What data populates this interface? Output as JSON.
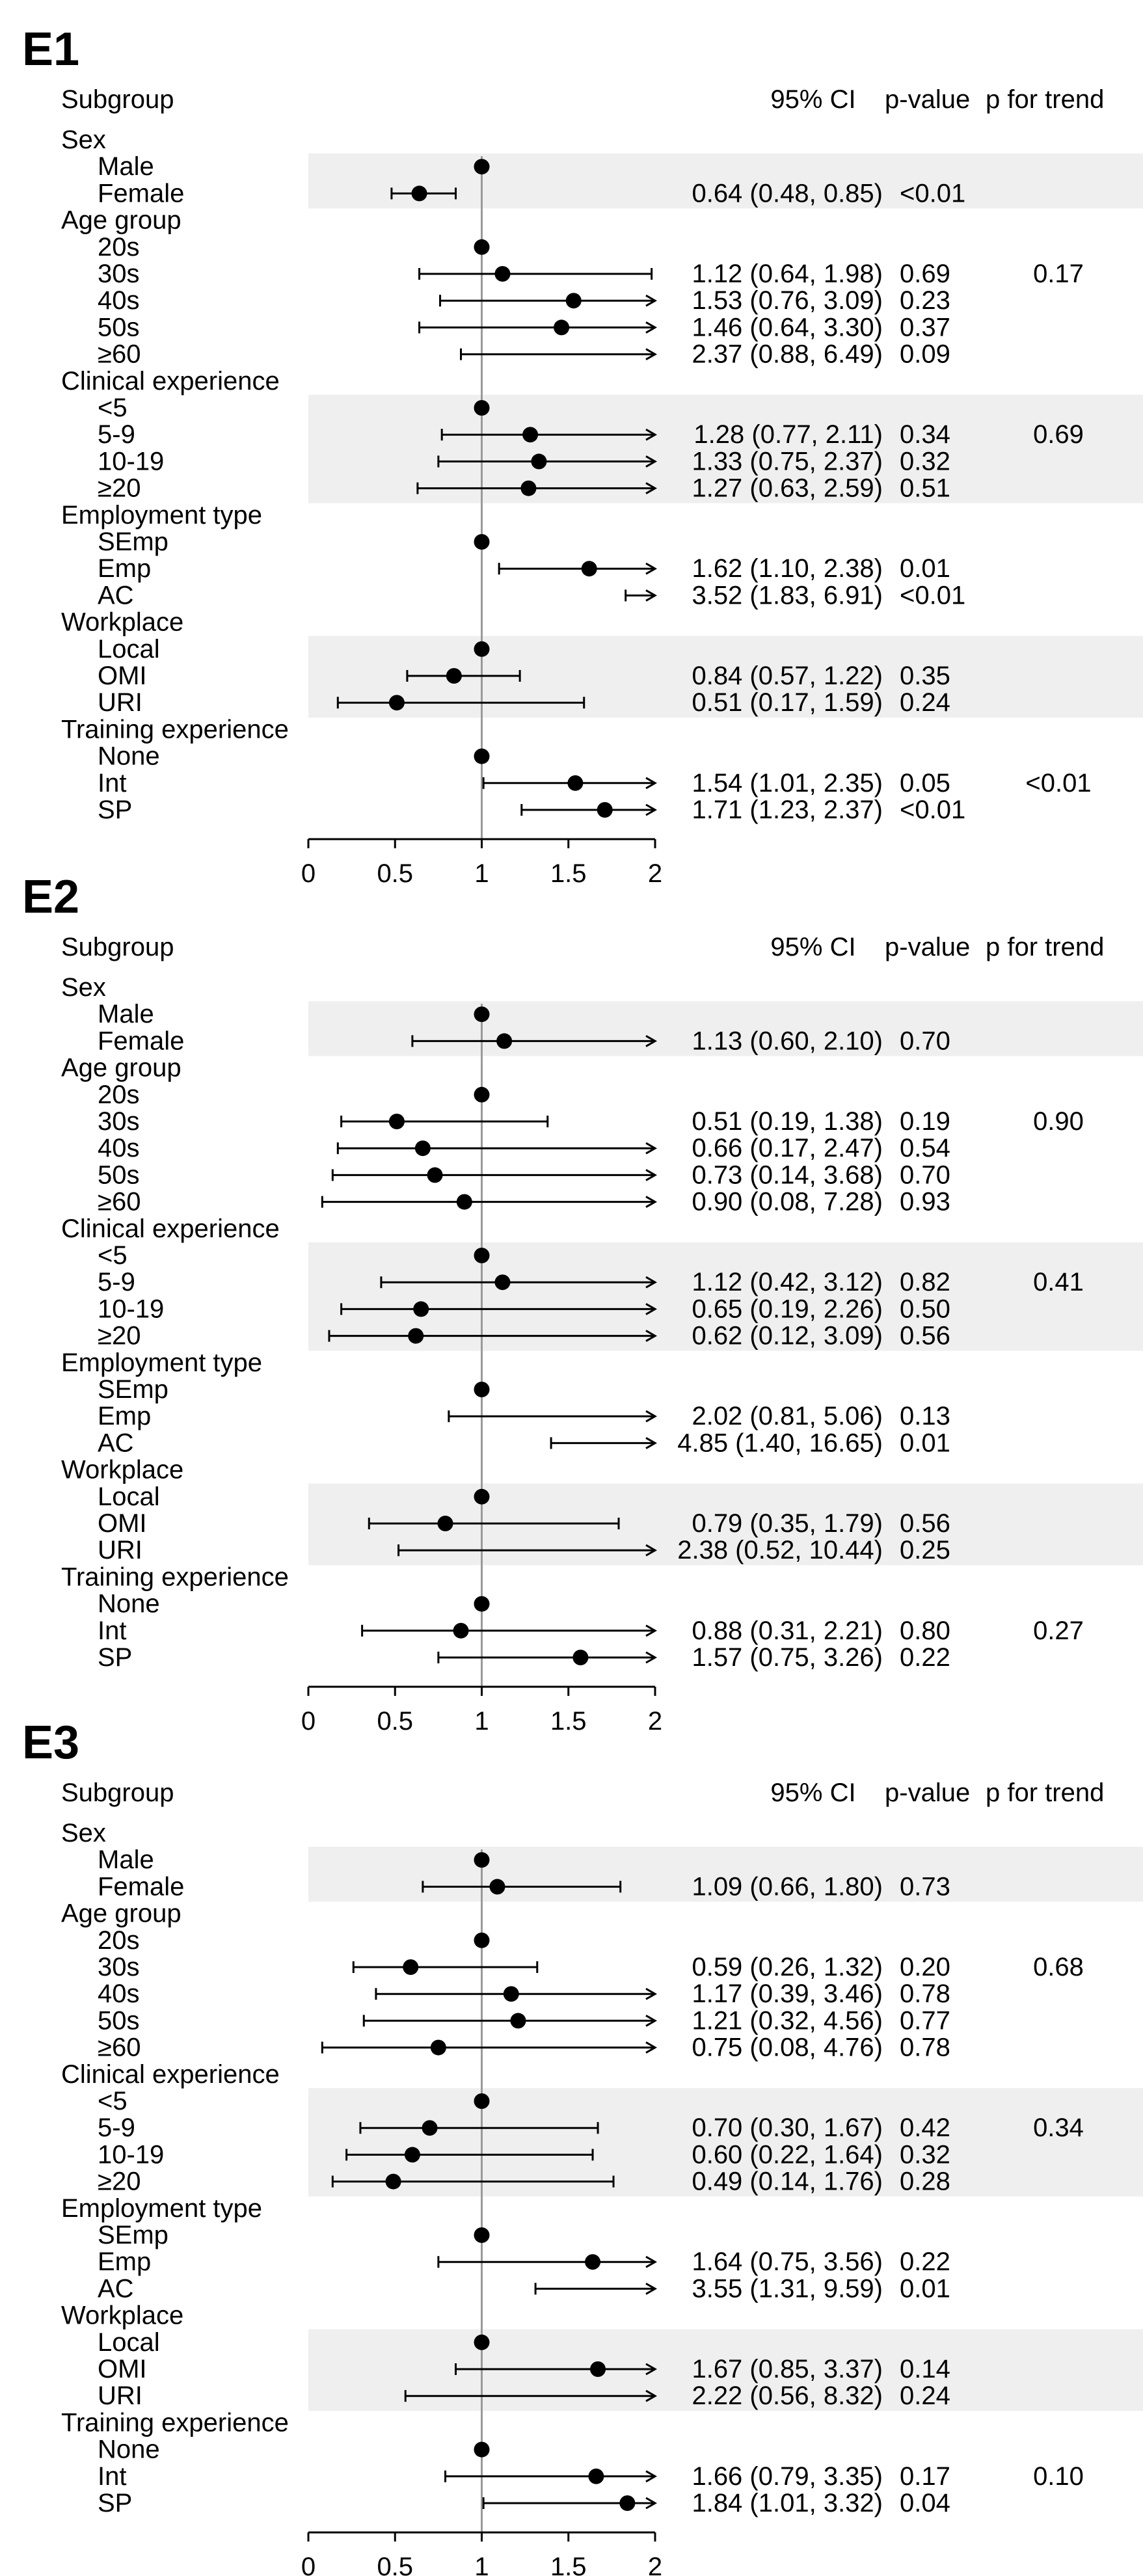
{
  "chart_data": [
    {
      "type": "forest",
      "panel": "E1",
      "headers": {
        "subgroup": "Subgroup",
        "ci": "95% CI",
        "p": "p-value",
        "trend": "p for trend"
      },
      "x_ticks": [
        "0",
        "0.5",
        "1",
        "1.5",
        "2"
      ],
      "xlim": [
        0,
        2
      ],
      "reference": 1,
      "rows": [
        {
          "label": "Sex",
          "type": "group"
        },
        {
          "label": "Male",
          "type": "ref"
        },
        {
          "label": "Female",
          "est": 0.64,
          "lo": 0.48,
          "hi": 0.85,
          "ci": "0.64 (0.48, 0.85)",
          "p": "<0.01"
        },
        {
          "label": "Age group",
          "type": "group"
        },
        {
          "label": "20s",
          "type": "ref"
        },
        {
          "label": "30s",
          "est": 1.12,
          "lo": 0.64,
          "hi": 1.98,
          "ci": "1.12 (0.64, 1.98)",
          "p": "0.69",
          "trend": "0.17"
        },
        {
          "label": "40s",
          "est": 1.53,
          "lo": 0.76,
          "hi": 3.09,
          "ci": "1.53 (0.76, 3.09)",
          "p": "0.23"
        },
        {
          "label": "50s",
          "est": 1.46,
          "lo": 0.64,
          "hi": 3.3,
          "ci": "1.46 (0.64, 3.30)",
          "p": "0.37"
        },
        {
          "label": "≥60",
          "est": 2.37,
          "lo": 0.88,
          "hi": 6.49,
          "ci": "2.37 (0.88, 6.49)",
          "p": "0.09"
        },
        {
          "label": "Clinical experience",
          "type": "group"
        },
        {
          "label": "<5",
          "type": "ref"
        },
        {
          "label": "5-9",
          "est": 1.28,
          "lo": 0.77,
          "hi": 2.11,
          "ci": "1.28 (0.77, 2.11)",
          "p": "0.34",
          "trend": "0.69"
        },
        {
          "label": "10-19",
          "est": 1.33,
          "lo": 0.75,
          "hi": 2.37,
          "ci": "1.33 (0.75, 2.37)",
          "p": "0.32"
        },
        {
          "label": "≥20",
          "est": 1.27,
          "lo": 0.63,
          "hi": 2.59,
          "ci": "1.27 (0.63, 2.59)",
          "p": "0.51"
        },
        {
          "label": "Employment type",
          "type": "group"
        },
        {
          "label": "SEmp",
          "type": "ref"
        },
        {
          "label": "Emp",
          "est": 1.62,
          "lo": 1.1,
          "hi": 2.38,
          "ci": "1.62 (1.10, 2.38)",
          "p": "0.01"
        },
        {
          "label": "AC",
          "est": 3.52,
          "lo": 1.83,
          "hi": 6.91,
          "ci": "3.52 (1.83, 6.91)",
          "p": "<0.01"
        },
        {
          "label": "Workplace",
          "type": "group"
        },
        {
          "label": "Local",
          "type": "ref"
        },
        {
          "label": "OMI",
          "est": 0.84,
          "lo": 0.57,
          "hi": 1.22,
          "ci": "0.84 (0.57, 1.22)",
          "p": "0.35"
        },
        {
          "label": "URI",
          "est": 0.51,
          "lo": 0.17,
          "hi": 1.59,
          "ci": "0.51 (0.17, 1.59)",
          "p": "0.24"
        },
        {
          "label": "Training experience",
          "type": "group"
        },
        {
          "label": "None",
          "type": "ref"
        },
        {
          "label": "Int",
          "est": 1.54,
          "lo": 1.01,
          "hi": 2.35,
          "ci": "1.54 (1.01, 2.35)",
          "p": "0.05",
          "trend": "<0.01"
        },
        {
          "label": "SP",
          "est": 1.71,
          "lo": 1.23,
          "hi": 2.37,
          "ci": "1.71 (1.23, 2.37)",
          "p": "<0.01"
        }
      ]
    },
    {
      "type": "forest",
      "panel": "E2",
      "headers": {
        "subgroup": "Subgroup",
        "ci": "95% CI",
        "p": "p-value",
        "trend": "p for trend"
      },
      "x_ticks": [
        "0",
        "0.5",
        "1",
        "1.5",
        "2"
      ],
      "xlim": [
        0,
        2
      ],
      "reference": 1,
      "rows": [
        {
          "label": "Sex",
          "type": "group"
        },
        {
          "label": "Male",
          "type": "ref"
        },
        {
          "label": "Female",
          "est": 1.13,
          "lo": 0.6,
          "hi": 2.1,
          "ci": "1.13 (0.60, 2.10)",
          "p": "0.70"
        },
        {
          "label": "Age group",
          "type": "group"
        },
        {
          "label": "20s",
          "type": "ref"
        },
        {
          "label": "30s",
          "est": 0.51,
          "lo": 0.19,
          "hi": 1.38,
          "ci": "0.51 (0.19, 1.38)",
          "p": "0.19",
          "trend": "0.90"
        },
        {
          "label": "40s",
          "est": 0.66,
          "lo": 0.17,
          "hi": 2.47,
          "ci": "0.66 (0.17, 2.47)",
          "p": "0.54"
        },
        {
          "label": "50s",
          "est": 0.73,
          "lo": 0.14,
          "hi": 3.68,
          "ci": "0.73 (0.14, 3.68)",
          "p": "0.70"
        },
        {
          "label": "≥60",
          "est": 0.9,
          "lo": 0.08,
          "hi": 7.28,
          "ci": "0.90 (0.08, 7.28)",
          "p": "0.93"
        },
        {
          "label": "Clinical experience",
          "type": "group"
        },
        {
          "label": "<5",
          "type": "ref"
        },
        {
          "label": "5-9",
          "est": 1.12,
          "lo": 0.42,
          "hi": 3.12,
          "ci": "1.12 (0.42, 3.12)",
          "p": "0.82",
          "trend": "0.41"
        },
        {
          "label": "10-19",
          "est": 0.65,
          "lo": 0.19,
          "hi": 2.26,
          "ci": "0.65 (0.19, 2.26)",
          "p": "0.50"
        },
        {
          "label": "≥20",
          "est": 0.62,
          "lo": 0.12,
          "hi": 3.09,
          "ci": "0.62 (0.12, 3.09)",
          "p": "0.56"
        },
        {
          "label": "Employment type",
          "type": "group"
        },
        {
          "label": "SEmp",
          "type": "ref"
        },
        {
          "label": "Emp",
          "est": 2.02,
          "lo": 0.81,
          "hi": 5.06,
          "ci": "2.02 (0.81, 5.06)",
          "p": "0.13"
        },
        {
          "label": "AC",
          "est": 4.85,
          "lo": 1.4,
          "hi": 16.65,
          "ci": "4.85 (1.40, 16.65)",
          "p": "0.01"
        },
        {
          "label": "Workplace",
          "type": "group"
        },
        {
          "label": "Local",
          "type": "ref"
        },
        {
          "label": "OMI",
          "est": 0.79,
          "lo": 0.35,
          "hi": 1.79,
          "ci": "0.79 (0.35, 1.79)",
          "p": "0.56"
        },
        {
          "label": "URI",
          "est": 2.38,
          "lo": 0.52,
          "hi": 10.44,
          "ci": "2.38 (0.52, 10.44)",
          "p": "0.25"
        },
        {
          "label": "Training experience",
          "type": "group"
        },
        {
          "label": "None",
          "type": "ref"
        },
        {
          "label": "Int",
          "est": 0.88,
          "lo": 0.31,
          "hi": 2.21,
          "ci": "0.88 (0.31, 2.21)",
          "p": "0.80",
          "trend": "0.27"
        },
        {
          "label": "SP",
          "est": 1.57,
          "lo": 0.75,
          "hi": 3.26,
          "ci": "1.57 (0.75, 3.26)",
          "p": "0.22"
        }
      ]
    },
    {
      "type": "forest",
      "panel": "E3",
      "headers": {
        "subgroup": "Subgroup",
        "ci": "95% CI",
        "p": "p-value",
        "trend": "p for trend"
      },
      "x_ticks": [
        "0",
        "0.5",
        "1",
        "1.5",
        "2"
      ],
      "xlim": [
        0,
        2
      ],
      "reference": 1,
      "rows": [
        {
          "label": "Sex",
          "type": "group"
        },
        {
          "label": "Male",
          "type": "ref"
        },
        {
          "label": "Female",
          "est": 1.09,
          "lo": 0.66,
          "hi": 1.8,
          "ci": "1.09 (0.66, 1.80)",
          "p": "0.73"
        },
        {
          "label": "Age group",
          "type": "group"
        },
        {
          "label": "20s",
          "type": "ref"
        },
        {
          "label": "30s",
          "est": 0.59,
          "lo": 0.26,
          "hi": 1.32,
          "ci": "0.59 (0.26, 1.32)",
          "p": "0.20",
          "trend": "0.68"
        },
        {
          "label": "40s",
          "est": 1.17,
          "lo": 0.39,
          "hi": 3.46,
          "ci": "1.17 (0.39, 3.46)",
          "p": "0.78"
        },
        {
          "label": "50s",
          "est": 1.21,
          "lo": 0.32,
          "hi": 4.56,
          "ci": "1.21 (0.32, 4.56)",
          "p": "0.77"
        },
        {
          "label": "≥60",
          "est": 0.75,
          "lo": 0.08,
          "hi": 4.76,
          "ci": "0.75 (0.08, 4.76)",
          "p": "0.78"
        },
        {
          "label": "Clinical experience",
          "type": "group"
        },
        {
          "label": "<5",
          "type": "ref"
        },
        {
          "label": "5-9",
          "est": 0.7,
          "lo": 0.3,
          "hi": 1.67,
          "ci": "0.70 (0.30, 1.67)",
          "p": "0.42",
          "trend": "0.34"
        },
        {
          "label": "10-19",
          "est": 0.6,
          "lo": 0.22,
          "hi": 1.64,
          "ci": "0.60 (0.22, 1.64)",
          "p": "0.32"
        },
        {
          "label": "≥20",
          "est": 0.49,
          "lo": 0.14,
          "hi": 1.76,
          "ci": "0.49 (0.14, 1.76)",
          "p": "0.28"
        },
        {
          "label": "Employment type",
          "type": "group"
        },
        {
          "label": "SEmp",
          "type": "ref"
        },
        {
          "label": "Emp",
          "est": 1.64,
          "lo": 0.75,
          "hi": 3.56,
          "ci": "1.64 (0.75, 3.56)",
          "p": "0.22"
        },
        {
          "label": "AC",
          "est": 3.55,
          "lo": 1.31,
          "hi": 9.59,
          "ci": "3.55 (1.31, 9.59)",
          "p": "0.01"
        },
        {
          "label": "Workplace",
          "type": "group"
        },
        {
          "label": "Local",
          "type": "ref"
        },
        {
          "label": "OMI",
          "est": 1.67,
          "lo": 0.85,
          "hi": 3.37,
          "ci": "1.67 (0.85, 3.37)",
          "p": "0.14"
        },
        {
          "label": "URI",
          "est": 2.22,
          "lo": 0.56,
          "hi": 8.32,
          "ci": "2.22 (0.56, 8.32)",
          "p": "0.24"
        },
        {
          "label": "Training experience",
          "type": "group"
        },
        {
          "label": "None",
          "type": "ref"
        },
        {
          "label": "Int",
          "est": 1.66,
          "lo": 0.79,
          "hi": 3.35,
          "ci": "1.66 (0.79, 3.35)",
          "p": "0.17",
          "trend": "0.10"
        },
        {
          "label": "SP",
          "est": 1.84,
          "lo": 1.01,
          "hi": 3.32,
          "ci": "1.84 (1.01, 3.32)",
          "p": "0.04"
        }
      ]
    }
  ]
}
